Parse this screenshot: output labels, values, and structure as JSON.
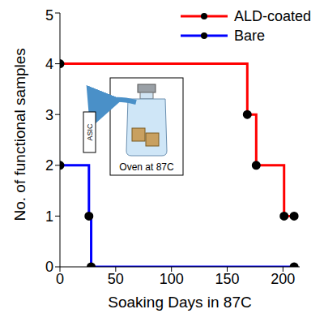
{
  "chart_data": {
    "type": "line",
    "title": null,
    "x_label": "Soaking Days in 87C",
    "y_label": "No. of functional samples",
    "xlim": [
      0,
      215
    ],
    "xticks": [
      0,
      50,
      100,
      150,
      200
    ],
    "ylim": [
      0,
      5
    ],
    "yticks": [
      0,
      1,
      2,
      3,
      4,
      5
    ],
    "grid": false,
    "legend": "upper right",
    "line_style": "step",
    "marker": "circle",
    "series": [
      {
        "name": "ALD-coated",
        "color": "#ff0000",
        "x": [
          0,
          168,
          176,
          201,
          210
        ],
        "values": [
          4,
          3,
          2,
          1,
          1
        ]
      },
      {
        "name": "Bare",
        "color": "#0000ff",
        "x": [
          0,
          26,
          28,
          210
        ],
        "values": [
          2,
          1,
          0,
          0
        ]
      }
    ],
    "annotations": [
      "Oven at 87C",
      "ASIC"
    ]
  }
}
